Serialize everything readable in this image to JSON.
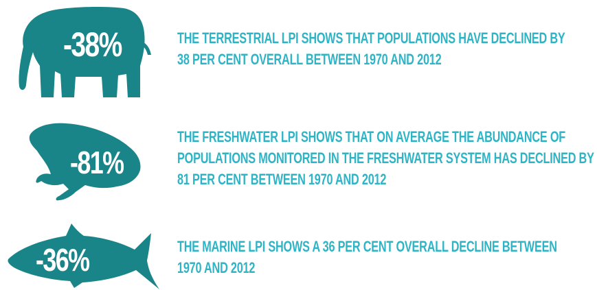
{
  "colors": {
    "silhouette": "#1a8588",
    "text_accent": "#2fb4c6",
    "percent_text": "#ffffff"
  },
  "items": [
    {
      "animal_icon": "elephant-icon",
      "percent": "-38%",
      "lines": [
        "THE TERRESTRIAL LPI SHOWS THAT POPULATIONS HAVE DECLINED BY",
        "38 PER CENT OVERALL BETWEEN 1970 AND 2012"
      ]
    },
    {
      "animal_icon": "frog-icon",
      "percent": "-81%",
      "lines": [
        "THE FRESHWATER LPI SHOWS THAT ON AVERAGE THE ABUNDANCE OF",
        "POPULATIONS MONITORED IN THE FRESHWATER SYSTEM HAS DECLINED BY",
        "81 PER CENT BETWEEN 1970 AND 2012"
      ]
    },
    {
      "animal_icon": "fish-icon",
      "percent": "-36%",
      "lines": [
        "THE MARINE LPI SHOWS A 36 PER CENT OVERALL DECLINE BETWEEN",
        "1970 AND 2012"
      ]
    }
  ]
}
